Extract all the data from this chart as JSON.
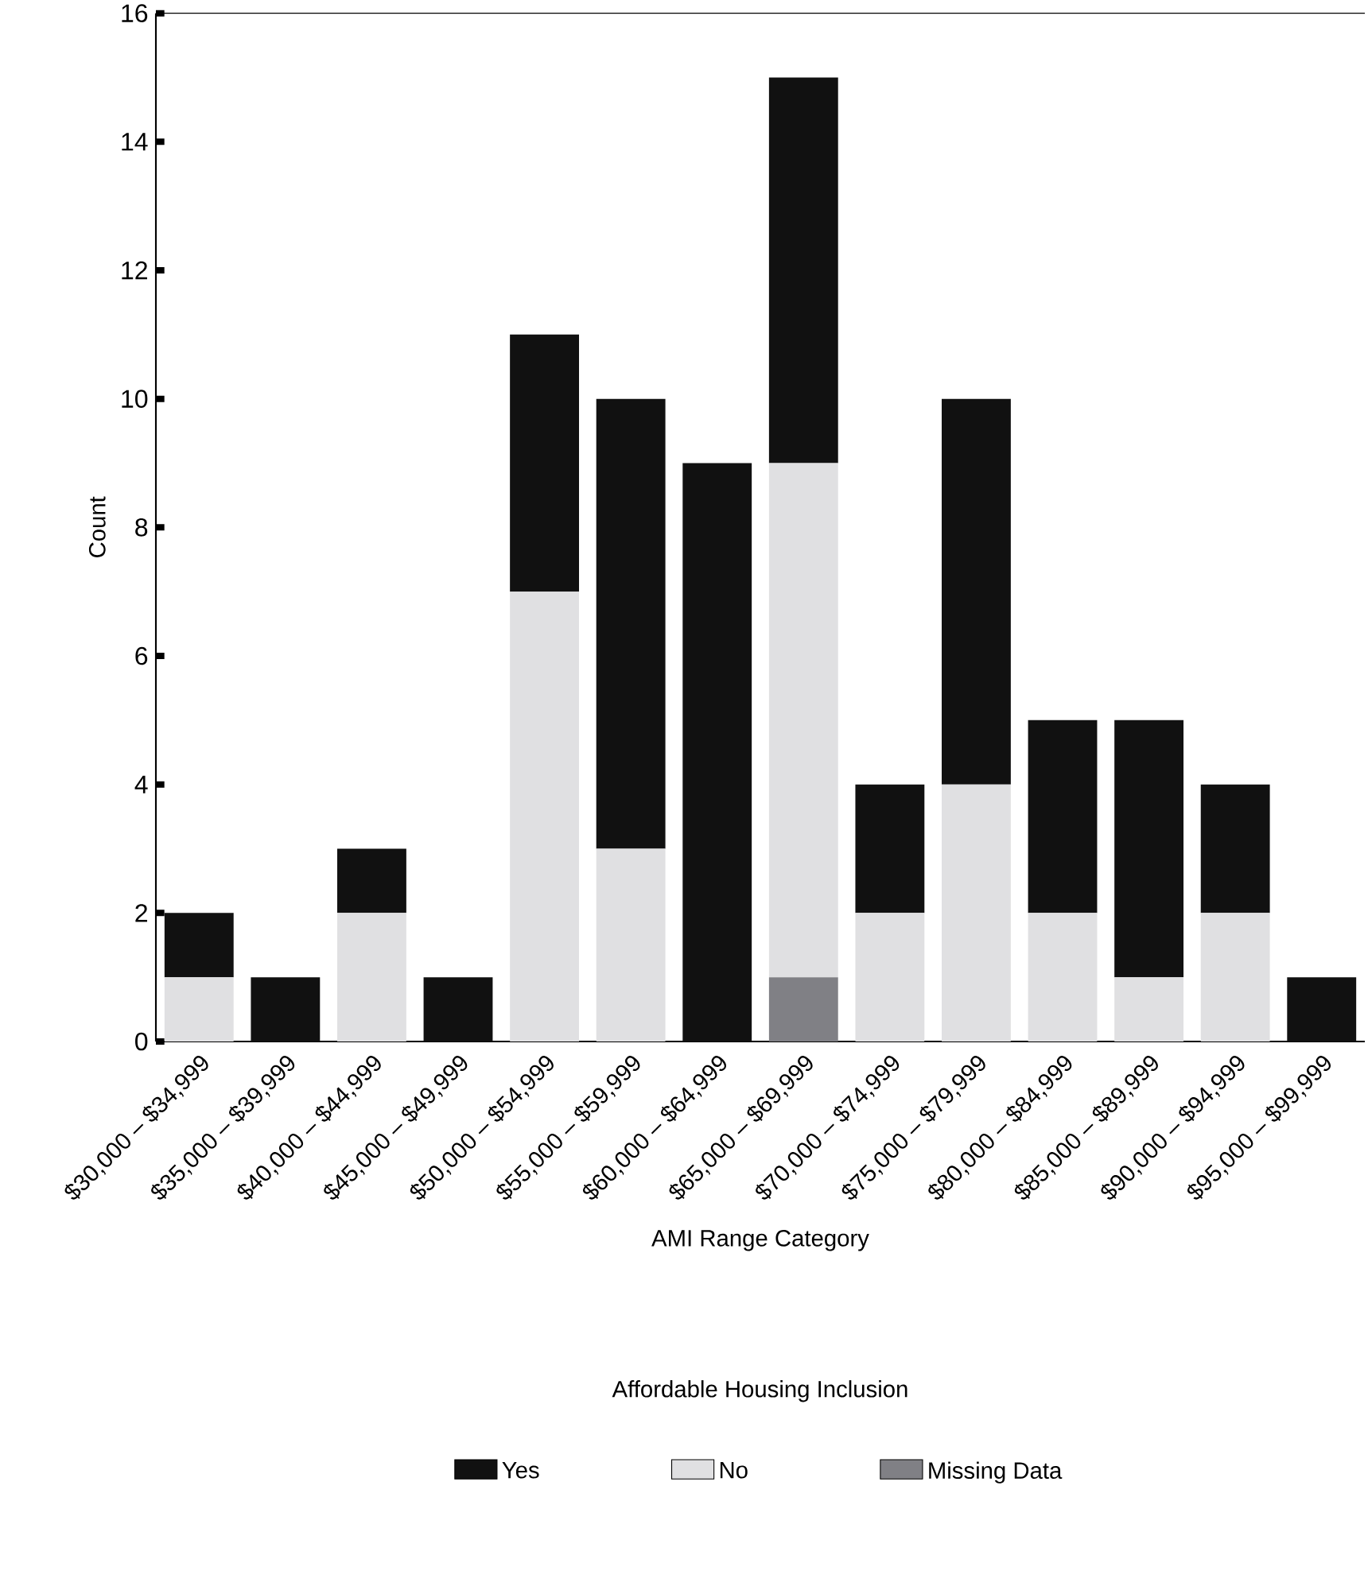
{
  "chart_data": {
    "type": "bar",
    "stacked": true,
    "xlabel": "AMI Range Category",
    "ylabel": "Count",
    "legend_title": "Affordable Housing Inclusion",
    "categories": [
      "$30,000 – $34,999",
      "$35,000 – $39,999",
      "$40,000 – $44,999",
      "$45,000 – $49,999",
      "$50,000 – $54,999",
      "$55,000 – $59,999",
      "$60,000 – $64,999",
      "$65,000 – $69,999",
      "$70,000 – $74,999",
      "$75,000 – $79,999",
      "$80,000 – $84,999",
      "$85,000 – $89,999",
      "$90,000 – $94,999",
      "$95,000 – $99,999"
    ],
    "series": [
      {
        "name": "Missing Data",
        "color": "#808085",
        "values": [
          0,
          0,
          0,
          0,
          0,
          0,
          0,
          1,
          0,
          0,
          0,
          0,
          0,
          0
        ]
      },
      {
        "name": "No",
        "color": "#e0e0e2",
        "values": [
          1,
          0,
          2,
          0,
          7,
          3,
          0,
          8,
          2,
          4,
          2,
          1,
          2,
          0
        ]
      },
      {
        "name": "Yes",
        "color": "#111111",
        "values": [
          1,
          1,
          1,
          1,
          4,
          7,
          9,
          6,
          2,
          6,
          3,
          4,
          2,
          1
        ]
      }
    ],
    "ylim": [
      0,
      16
    ],
    "yticks": [
      0,
      2,
      4,
      6,
      8,
      10,
      12,
      14,
      16
    ],
    "grid": false,
    "legend": "bottom"
  }
}
